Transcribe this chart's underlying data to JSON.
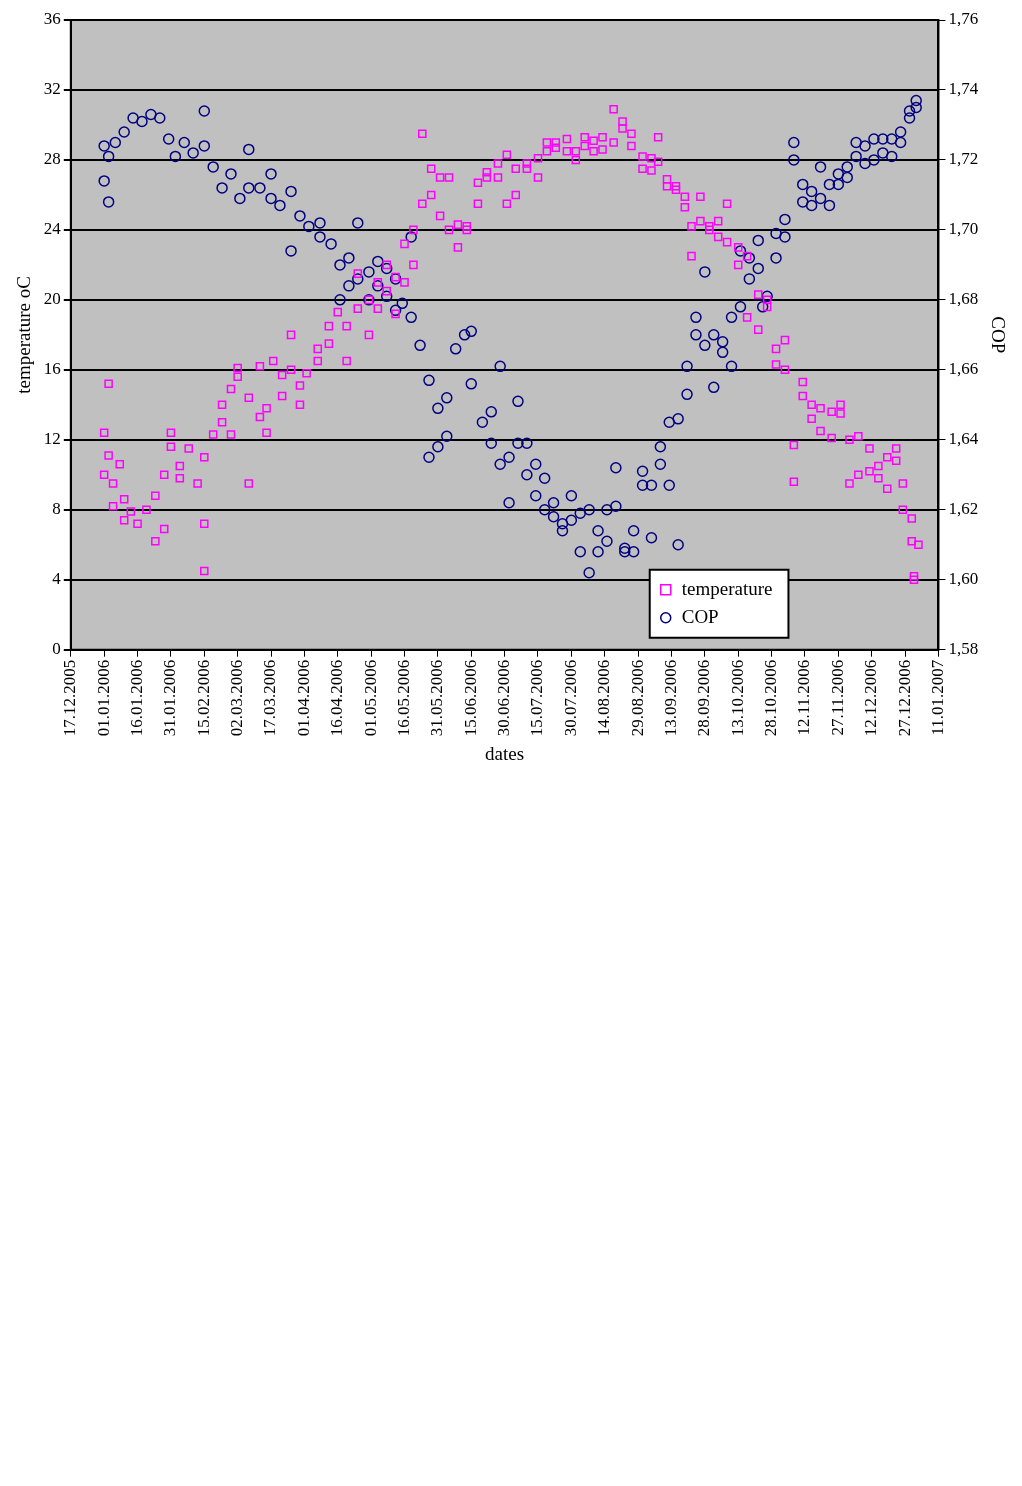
{
  "chart_data": {
    "type": "scatter",
    "xlabel": "dates",
    "ylabel": "temperature oC",
    "y2label": "COP",
    "xlim": [
      "2005-12-17",
      "2007-01-11"
    ],
    "xticks": [
      {
        "value": "2005-12-17",
        "label": "17.12.2005"
      },
      {
        "value": "2006-01-01",
        "label": "01.01.2006"
      },
      {
        "value": "2006-01-16",
        "label": "16.01.2006"
      },
      {
        "value": "2006-01-31",
        "label": "31.01.2006"
      },
      {
        "value": "2006-02-15",
        "label": "15.02.2006"
      },
      {
        "value": "2006-03-02",
        "label": "02.03.2006"
      },
      {
        "value": "2006-03-17",
        "label": "17.03.2006"
      },
      {
        "value": "2006-04-01",
        "label": "01.04.2006"
      },
      {
        "value": "2006-04-16",
        "label": "16.04.2006"
      },
      {
        "value": "2006-05-01",
        "label": "01.05.2006"
      },
      {
        "value": "2006-05-16",
        "label": "16.05.2006"
      },
      {
        "value": "2006-05-31",
        "label": "31.05.2006"
      },
      {
        "value": "2006-06-15",
        "label": "15.06.2006"
      },
      {
        "value": "2006-06-30",
        "label": "30.06.2006"
      },
      {
        "value": "2006-07-15",
        "label": "15.07.2006"
      },
      {
        "value": "2006-07-30",
        "label": "30.07.2006"
      },
      {
        "value": "2006-08-14",
        "label": "14.08.2006"
      },
      {
        "value": "2006-08-29",
        "label": "29.08.2006"
      },
      {
        "value": "2006-09-13",
        "label": "13.09.2006"
      },
      {
        "value": "2006-09-28",
        "label": "28.09.2006"
      },
      {
        "value": "2006-10-13",
        "label": "13.10.2006"
      },
      {
        "value": "2006-10-28",
        "label": "28.10.2006"
      },
      {
        "value": "2006-11-12",
        "label": "12.11.2006"
      },
      {
        "value": "2006-11-27",
        "label": "27.11.2006"
      },
      {
        "value": "2006-12-12",
        "label": "12.12.2006"
      },
      {
        "value": "2006-12-27",
        "label": "27.12.2006"
      },
      {
        "value": "2007-01-11",
        "label": "11.01.2007"
      }
    ],
    "ylim": [
      0,
      36
    ],
    "yticks": [
      0,
      4,
      8,
      12,
      16,
      20,
      24,
      28,
      32,
      36
    ],
    "y2lim": [
      1.58,
      1.76
    ],
    "y2ticks": [
      {
        "value": 1.58,
        "label": "1,58"
      },
      {
        "value": 1.6,
        "label": "1,60"
      },
      {
        "value": 1.62,
        "label": "1,62"
      },
      {
        "value": 1.64,
        "label": "1,64"
      },
      {
        "value": 1.66,
        "label": "1,66"
      },
      {
        "value": 1.68,
        "label": "1,68"
      },
      {
        "value": 1.7,
        "label": "1,70"
      },
      {
        "value": 1.72,
        "label": "1,72"
      },
      {
        "value": 1.74,
        "label": "1,74"
      },
      {
        "value": 1.76,
        "label": "1,76"
      }
    ],
    "grid": "y",
    "legend": "bottom right",
    "series": [
      {
        "name": "temperature",
        "color": "#ff00ff",
        "marker": "square",
        "x": [
          "2006-01-01",
          "2006-01-01",
          "2006-01-03",
          "2006-01-03",
          "2006-01-05",
          "2006-01-05",
          "2006-01-08",
          "2006-01-10",
          "2006-01-10",
          "2006-01-13",
          "2006-01-16",
          "2006-01-20",
          "2006-01-24",
          "2006-01-24",
          "2006-01-28",
          "2006-01-28",
          "2006-01-31",
          "2006-01-31",
          "2006-02-04",
          "2006-02-04",
          "2006-02-08",
          "2006-02-12",
          "2006-02-15",
          "2006-02-15",
          "2006-02-15",
          "2006-02-19",
          "2006-02-23",
          "2006-02-23",
          "2006-02-27",
          "2006-02-27",
          "2006-03-02",
          "2006-03-02",
          "2006-03-07",
          "2006-03-07",
          "2006-03-12",
          "2006-03-12",
          "2006-03-15",
          "2006-03-15",
          "2006-03-18",
          "2006-03-22",
          "2006-03-22",
          "2006-03-26",
          "2006-03-26",
          "2006-03-30",
          "2006-03-30",
          "2006-04-02",
          "2006-04-07",
          "2006-04-07",
          "2006-04-12",
          "2006-04-12",
          "2006-04-16",
          "2006-04-20",
          "2006-04-20",
          "2006-04-25",
          "2006-04-25",
          "2006-04-30",
          "2006-04-30",
          "2006-05-04",
          "2006-05-04",
          "2006-05-08",
          "2006-05-08",
          "2006-05-12",
          "2006-05-12",
          "2006-05-16",
          "2006-05-16",
          "2006-05-20",
          "2006-05-20",
          "2006-05-24",
          "2006-05-24",
          "2006-05-28",
          "2006-05-28",
          "2006-06-01",
          "2006-06-01",
          "2006-06-05",
          "2006-06-05",
          "2006-06-09",
          "2006-06-09",
          "2006-06-13",
          "2006-06-13",
          "2006-06-18",
          "2006-06-18",
          "2006-06-22",
          "2006-06-22",
          "2006-06-27",
          "2006-06-27",
          "2006-07-01",
          "2006-07-01",
          "2006-07-05",
          "2006-07-05",
          "2006-07-10",
          "2006-07-10",
          "2006-07-15",
          "2006-07-15",
          "2006-07-19",
          "2006-07-19",
          "2006-07-23",
          "2006-07-23",
          "2006-07-28",
          "2006-07-28",
          "2006-08-01",
          "2006-08-01",
          "2006-08-05",
          "2006-08-05",
          "2006-08-09",
          "2006-08-09",
          "2006-08-13",
          "2006-08-13",
          "2006-08-18",
          "2006-08-18",
          "2006-08-22",
          "2006-08-22",
          "2006-08-26",
          "2006-08-26",
          "2006-08-31",
          "2006-08-31",
          "2006-09-04",
          "2006-09-04",
          "2006-09-07",
          "2006-09-07",
          "2006-09-11",
          "2006-09-11",
          "2006-09-15",
          "2006-09-15",
          "2006-09-19",
          "2006-09-19",
          "2006-09-22",
          "2006-09-22",
          "2006-09-26",
          "2006-09-26",
          "2006-09-30",
          "2006-09-30",
          "2006-10-04",
          "2006-10-04",
          "2006-10-08",
          "2006-10-08",
          "2006-10-13",
          "2006-10-13",
          "2006-10-17",
          "2006-10-17",
          "2006-10-22",
          "2006-10-22",
          "2006-10-26",
          "2006-10-26",
          "2006-10-30",
          "2006-10-30",
          "2006-11-03",
          "2006-11-03",
          "2006-11-07",
          "2006-11-07",
          "2006-11-11",
          "2006-11-11",
          "2006-11-15",
          "2006-11-15",
          "2006-11-19",
          "2006-11-19",
          "2006-11-24",
          "2006-11-24",
          "2006-11-28",
          "2006-11-28",
          "2006-12-02",
          "2006-12-02",
          "2006-12-06",
          "2006-12-06",
          "2006-12-11",
          "2006-12-11",
          "2006-12-15",
          "2006-12-15",
          "2006-12-19",
          "2006-12-19",
          "2006-12-23",
          "2006-12-23",
          "2006-12-26",
          "2006-12-26",
          "2006-12-30",
          "2006-12-30",
          "2006-12-31",
          "2006-12-31",
          "2007-01-02"
        ],
        "values": [
          12.4,
          10.0,
          15.2,
          11.1,
          9.5,
          8.2,
          10.6,
          7.4,
          8.6,
          7.9,
          7.2,
          8.0,
          6.2,
          8.8,
          6.9,
          10.0,
          11.6,
          12.4,
          10.5,
          9.8,
          11.5,
          9.5,
          4.5,
          7.2,
          11.0,
          12.3,
          13.0,
          14.0,
          14.9,
          12.3,
          15.6,
          16.1,
          14.4,
          9.5,
          16.2,
          13.3,
          12.4,
          13.8,
          16.5,
          14.5,
          15.7,
          16.0,
          18.0,
          15.1,
          14.0,
          15.8,
          16.5,
          17.2,
          17.5,
          18.5,
          19.3,
          18.5,
          16.5,
          19.5,
          21.5,
          20.0,
          18.0,
          19.5,
          21.0,
          20.5,
          22.0,
          21.3,
          19.2,
          21.0,
          23.2,
          24.0,
          22.0,
          29.5,
          25.5,
          26.0,
          27.5,
          27.0,
          24.8,
          27.0,
          24.0,
          24.3,
          23.0,
          24.2,
          24.0,
          26.7,
          25.5,
          27.0,
          27.3,
          27.8,
          27.0,
          28.3,
          25.5,
          27.5,
          26.0,
          27.8,
          27.5,
          28.1,
          27.0,
          28.5,
          29.0,
          28.7,
          29.0,
          29.2,
          28.5,
          28.0,
          28.5,
          29.3,
          28.8,
          28.5,
          29.1,
          28.6,
          29.3,
          29.0,
          30.9,
          29.8,
          30.2,
          28.8,
          29.5,
          28.2,
          27.5,
          28.1,
          27.4,
          29.3,
          27.9,
          26.9,
          26.5,
          26.5,
          26.3,
          25.9,
          25.3,
          22.5,
          24.2,
          24.5,
          25.9,
          24.2,
          24.0,
          24.5,
          23.6,
          23.3,
          25.5,
          23.0,
          22.0,
          22.5,
          19.0,
          20.3,
          18.3,
          19.6,
          20.0,
          17.2,
          16.3,
          17.7,
          16.0,
          11.7,
          9.6,
          15.3,
          14.5,
          14.0,
          13.2,
          13.8,
          12.5,
          13.6,
          12.1,
          13.5,
          14.0,
          12.0,
          9.5,
          12.2,
          10.0,
          11.5,
          10.2,
          9.8,
          10.5,
          11.0,
          9.2,
          10.8,
          11.5,
          8.0,
          9.5,
          7.5,
          6.2,
          4.2,
          4.0,
          6.0
        ]
      },
      {
        "name": "COP",
        "color": "#000080",
        "marker": "circle",
        "axis": "y2",
        "x": [
          "2006-01-01",
          "2006-01-01",
          "2006-01-03",
          "2006-01-03",
          "2006-01-06",
          "2006-01-10",
          "2006-01-14",
          "2006-01-18",
          "2006-01-22",
          "2006-01-26",
          "2006-01-30",
          "2006-02-02",
          "2006-02-06",
          "2006-02-10",
          "2006-02-15",
          "2006-02-15",
          "2006-02-19",
          "2006-02-23",
          "2006-02-27",
          "2006-03-03",
          "2006-03-07",
          "2006-03-07",
          "2006-03-12",
          "2006-03-17",
          "2006-03-17",
          "2006-03-21",
          "2006-03-26",
          "2006-03-26",
          "2006-03-30",
          "2006-04-03",
          "2006-04-08",
          "2006-04-08",
          "2006-04-13",
          "2006-04-17",
          "2006-04-17",
          "2006-04-21",
          "2006-04-21",
          "2006-04-25",
          "2006-04-25",
          "2006-04-30",
          "2006-04-30",
          "2006-05-04",
          "2006-05-04",
          "2006-05-08",
          "2006-05-08",
          "2006-05-12",
          "2006-05-12",
          "2006-05-15",
          "2006-05-19",
          "2006-05-19",
          "2006-05-23",
          "2006-05-27",
          "2006-05-27",
          "2006-05-31",
          "2006-05-31",
          "2006-06-04",
          "2006-06-04",
          "2006-06-08",
          "2006-06-12",
          "2006-06-15",
          "2006-06-15",
          "2006-06-20",
          "2006-06-24",
          "2006-06-24",
          "2006-06-28",
          "2006-06-28",
          "2006-07-02",
          "2006-07-02",
          "2006-07-06",
          "2006-07-06",
          "2006-07-10",
          "2006-07-10",
          "2006-07-14",
          "2006-07-14",
          "2006-07-18",
          "2006-07-18",
          "2006-07-22",
          "2006-07-22",
          "2006-07-26",
          "2006-07-26",
          "2006-07-30",
          "2006-07-30",
          "2006-08-03",
          "2006-08-03",
          "2006-08-07",
          "2006-08-07",
          "2006-08-11",
          "2006-08-11",
          "2006-08-15",
          "2006-08-15",
          "2006-08-19",
          "2006-08-19",
          "2006-08-23",
          "2006-08-23",
          "2006-08-27",
          "2006-08-27",
          "2006-08-31",
          "2006-08-31",
          "2006-09-04",
          "2006-09-04",
          "2006-09-08",
          "2006-09-08",
          "2006-09-12",
          "2006-09-12",
          "2006-09-16",
          "2006-09-16",
          "2006-09-20",
          "2006-09-20",
          "2006-09-24",
          "2006-09-24",
          "2006-09-28",
          "2006-09-28",
          "2006-10-02",
          "2006-10-02",
          "2006-10-06",
          "2006-10-06",
          "2006-10-10",
          "2006-10-10",
          "2006-10-14",
          "2006-10-14",
          "2006-10-18",
          "2006-10-18",
          "2006-10-22",
          "2006-10-22",
          "2006-10-26",
          "2006-10-24",
          "2006-10-30",
          "2006-10-30",
          "2006-11-03",
          "2006-11-03",
          "2006-11-07",
          "2006-11-07",
          "2006-11-11",
          "2006-11-11",
          "2006-11-15",
          "2006-11-15",
          "2006-11-19",
          "2006-11-19",
          "2006-11-23",
          "2006-11-23",
          "2006-11-27",
          "2006-11-27",
          "2006-12-01",
          "2006-12-01",
          "2006-12-05",
          "2006-12-05",
          "2006-12-09",
          "2006-12-09",
          "2006-12-13",
          "2006-12-13",
          "2006-12-17",
          "2006-12-17",
          "2006-12-21",
          "2006-12-21",
          "2006-12-25",
          "2006-12-25",
          "2006-12-29",
          "2006-12-29",
          "2007-01-01",
          "2007-01-01"
        ],
        "values": [
          1.724,
          1.714,
          1.708,
          1.721,
          1.725,
          1.728,
          1.732,
          1.731,
          1.733,
          1.732,
          1.726,
          1.721,
          1.725,
          1.722,
          1.734,
          1.724,
          1.718,
          1.712,
          1.716,
          1.709,
          1.723,
          1.712,
          1.712,
          1.716,
          1.709,
          1.707,
          1.711,
          1.694,
          1.704,
          1.701,
          1.702,
          1.698,
          1.696,
          1.69,
          1.68,
          1.692,
          1.684,
          1.702,
          1.686,
          1.688,
          1.68,
          1.691,
          1.684,
          1.689,
          1.681,
          1.686,
          1.677,
          1.679,
          1.675,
          1.698,
          1.667,
          1.657,
          1.635,
          1.649,
          1.638,
          1.641,
          1.652,
          1.666,
          1.67,
          1.656,
          1.671,
          1.645,
          1.648,
          1.639,
          1.633,
          1.661,
          1.635,
          1.622,
          1.651,
          1.639,
          1.63,
          1.639,
          1.624,
          1.633,
          1.62,
          1.629,
          1.622,
          1.618,
          1.616,
          1.614,
          1.617,
          1.624,
          1.619,
          1.608,
          1.62,
          1.602,
          1.614,
          1.608,
          1.62,
          1.611,
          1.621,
          1.632,
          1.608,
          1.609,
          1.614,
          1.608,
          1.627,
          1.631,
          1.612,
          1.627,
          1.633,
          1.638,
          1.645,
          1.627,
          1.646,
          1.61,
          1.661,
          1.653,
          1.675,
          1.67,
          1.688,
          1.667,
          1.67,
          1.655,
          1.668,
          1.665,
          1.675,
          1.661,
          1.694,
          1.678,
          1.692,
          1.686,
          1.689,
          1.697,
          1.681,
          1.678,
          1.699,
          1.692,
          1.703,
          1.698,
          1.725,
          1.72,
          1.713,
          1.708,
          1.711,
          1.707,
          1.709,
          1.718,
          1.713,
          1.707,
          1.713,
          1.716,
          1.715,
          1.718,
          1.721,
          1.725,
          1.724,
          1.719,
          1.72,
          1.726,
          1.726,
          1.722,
          1.721,
          1.726,
          1.728,
          1.725,
          1.734,
          1.732,
          1.735,
          1.737
        ]
      }
    ]
  }
}
